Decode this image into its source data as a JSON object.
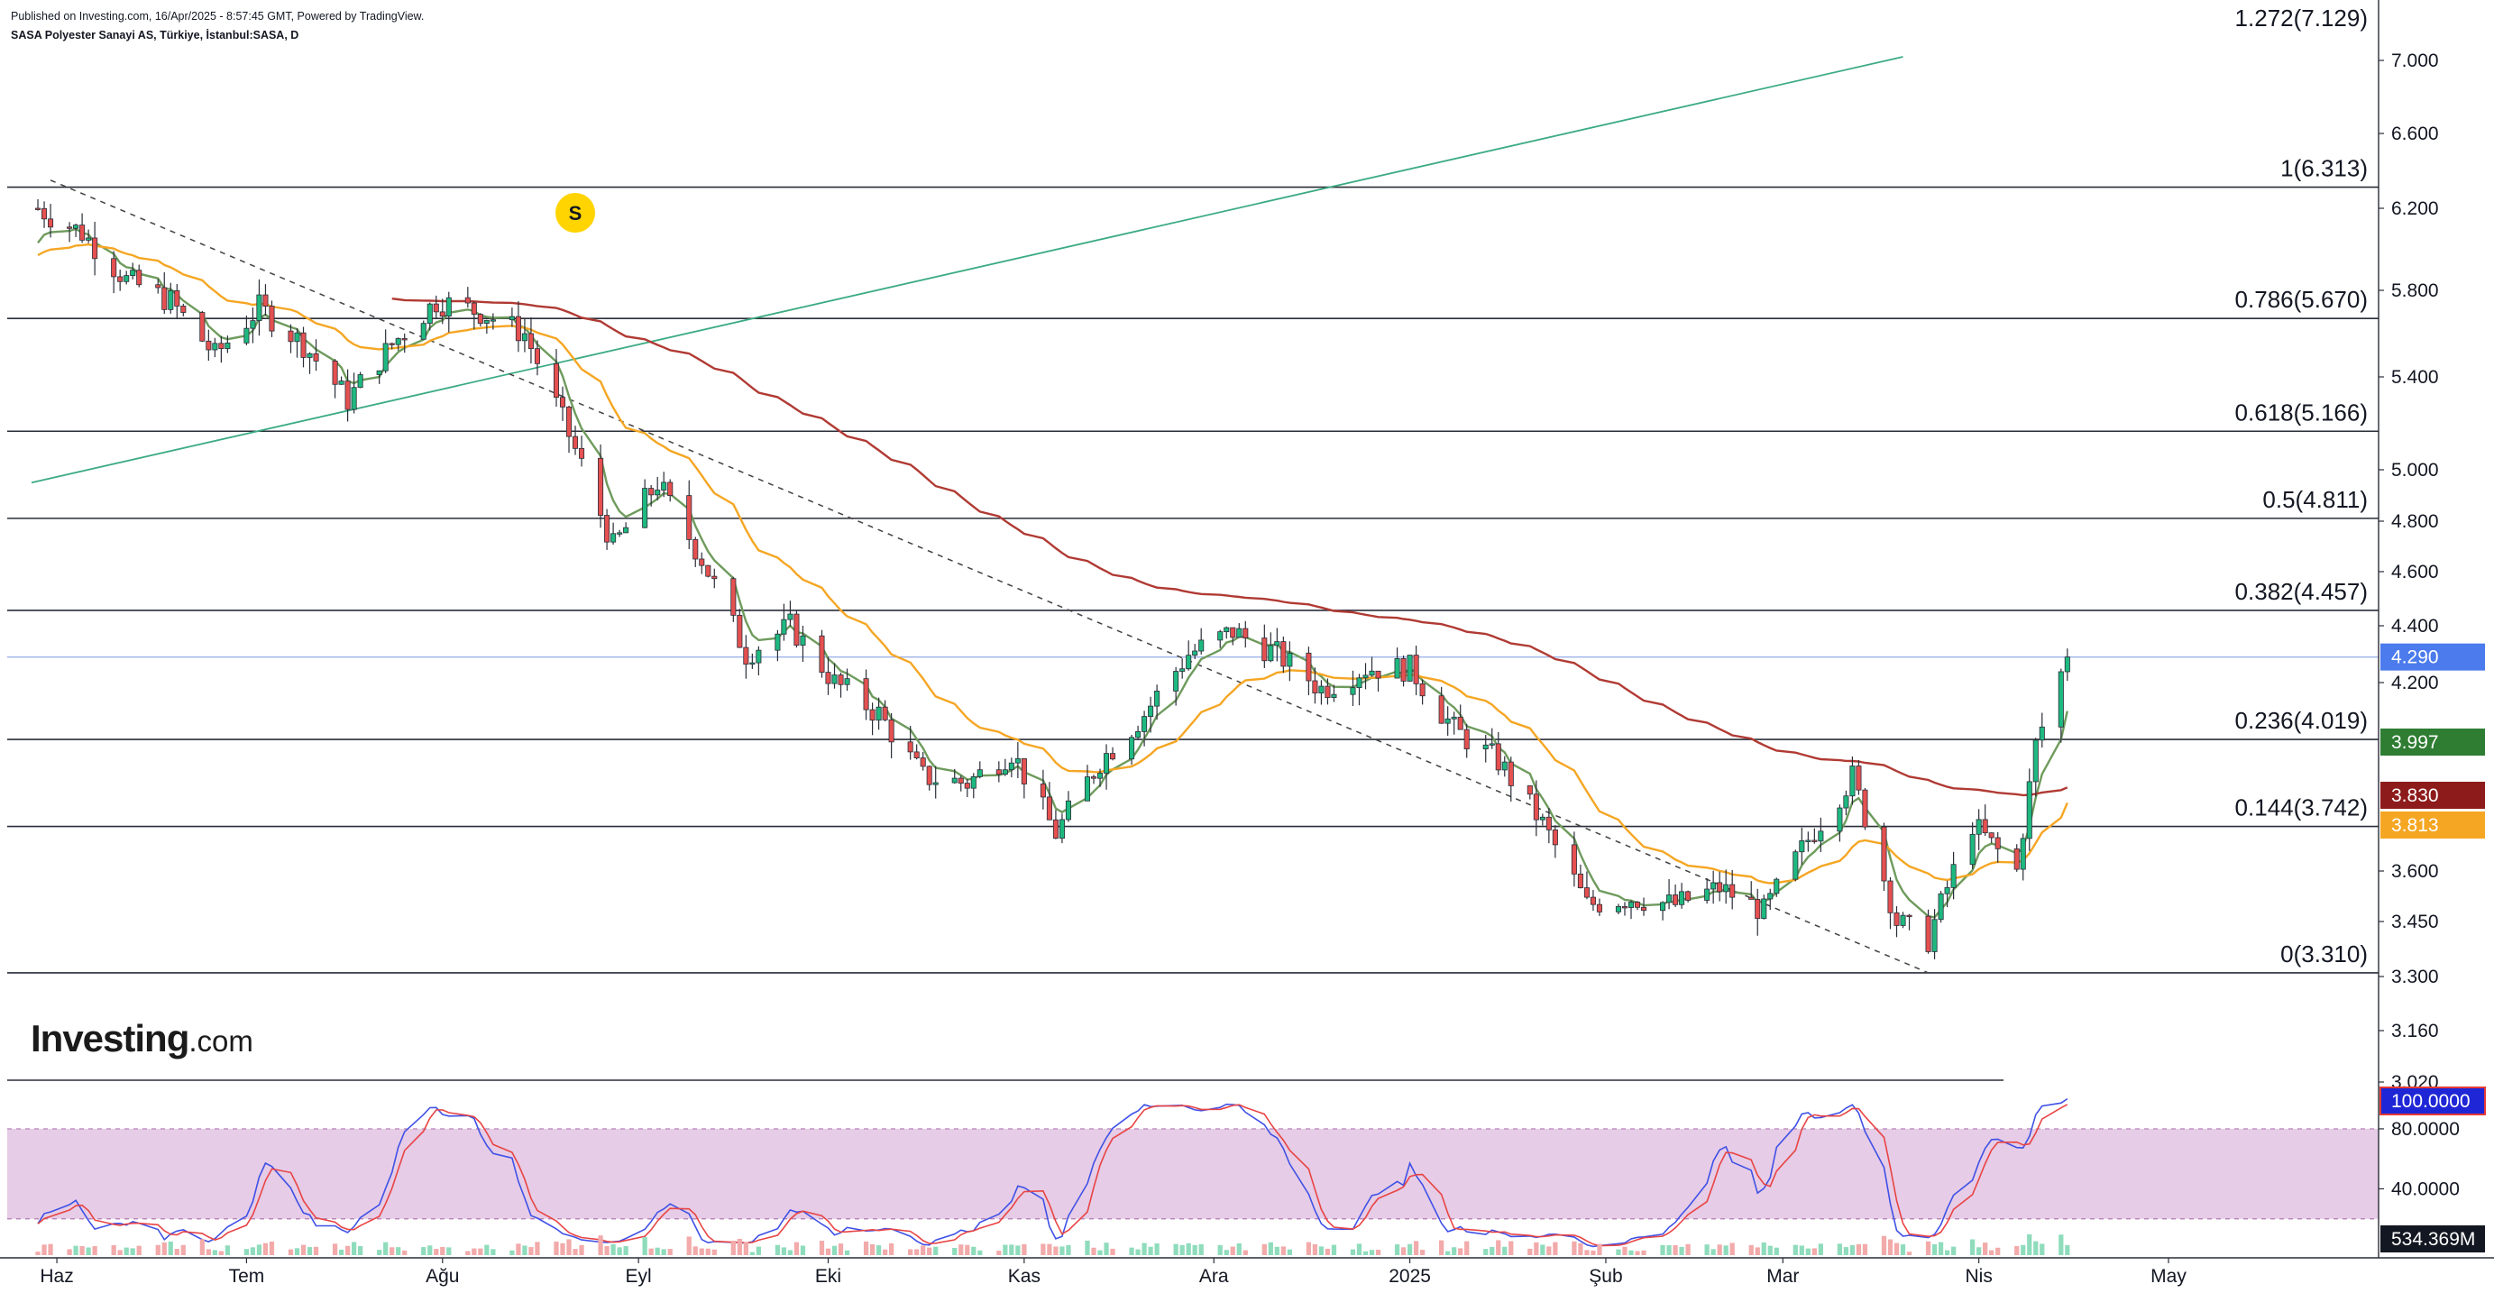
{
  "header": {
    "published": "Published on Investing.com, 16/Apr/2025 - 8:57:45 GMT, Powered by TradingView.",
    "symbol": "SASA Polyester Sanayi AS, Türkiye, İstanbul:SASA, D"
  },
  "logo": {
    "main": "Investing",
    "suffix": ".com"
  },
  "colors": {
    "up": "#1eb980",
    "down": "#e55050",
    "ema_fast": "#6e9b5c",
    "ema_mid": "#f5a623",
    "ema_slow": "#b03a33",
    "trend": "#3bab82",
    "stoch_k": "#3f51e6",
    "stoch_d": "#e84444",
    "stoch_band": "#e6cce6",
    "marker": "#ffd400"
  },
  "chart_data": [
    {
      "type": "candlestick",
      "title": "SASA Polyester Sanayi AS, Türkiye, İstanbul:SASA, D",
      "ylim": [
        3.03,
        7.05
      ],
      "y_ticks": [
        "7.000",
        "6.600",
        "6.200",
        "5.800",
        "5.400",
        "5.000",
        "4.800",
        "4.600",
        "4.400",
        "4.200",
        "3.600",
        "3.450",
        "3.300",
        "3.160",
        "3.020"
      ],
      "x_ticks": [
        "Haz",
        "Tem",
        "Ağu",
        "Eyl",
        "Eki",
        "Kas",
        "Ara",
        "2025",
        "Şub",
        "Mar",
        "Nis",
        "May"
      ],
      "close_path": [
        [
          "2024-05-29",
          6.2
        ],
        [
          "2024-06-05",
          6.08
        ],
        [
          "2024-06-12",
          5.85
        ],
        [
          "2024-06-19",
          5.75
        ],
        [
          "2024-06-26",
          5.5
        ],
        [
          "2024-07-03",
          5.72
        ],
        [
          "2024-07-10",
          5.55
        ],
        [
          "2024-07-17",
          5.3
        ],
        [
          "2024-07-24",
          5.55
        ],
        [
          "2024-07-31",
          5.75
        ],
        [
          "2024-08-07",
          5.7
        ],
        [
          "2024-08-14",
          5.6
        ],
        [
          "2024-08-21",
          5.15
        ],
        [
          "2024-08-28",
          4.7
        ],
        [
          "2024-09-04",
          4.95
        ],
        [
          "2024-09-11",
          4.65
        ],
        [
          "2024-09-18",
          4.3
        ],
        [
          "2024-09-25",
          4.4
        ],
        [
          "2024-10-02",
          4.2
        ],
        [
          "2024-10-09",
          4.1
        ],
        [
          "2024-10-16",
          3.9
        ],
        [
          "2024-10-23",
          3.88
        ],
        [
          "2024-10-30",
          3.98
        ],
        [
          "2024-11-06",
          3.72
        ],
        [
          "2024-11-13",
          3.95
        ],
        [
          "2024-11-20",
          4.1
        ],
        [
          "2024-11-27",
          4.3
        ],
        [
          "2024-12-04",
          4.38
        ],
        [
          "2024-12-11",
          4.3
        ],
        [
          "2024-12-18",
          4.18
        ],
        [
          "2024-12-25",
          4.25
        ],
        [
          "2025-01-01",
          4.25
        ],
        [
          "2025-01-08",
          4.05
        ],
        [
          "2025-01-15",
          3.95
        ],
        [
          "2025-01-22",
          3.75
        ],
        [
          "2025-01-29",
          3.5
        ],
        [
          "2025-02-05",
          3.52
        ],
        [
          "2025-02-12",
          3.5
        ],
        [
          "2025-02-19",
          3.55
        ],
        [
          "2025-02-26",
          3.48
        ],
        [
          "2025-03-05",
          3.7
        ],
        [
          "2025-03-12",
          3.9
        ],
        [
          "2025-03-19",
          3.45
        ],
        [
          "2025-03-24",
          3.4
        ],
        [
          "2025-03-31",
          3.75
        ],
        [
          "2025-04-07",
          3.6
        ],
        [
          "2025-04-10",
          4.0
        ],
        [
          "2025-04-15",
          4.29
        ]
      ],
      "last": {
        "date": "2025-04-15",
        "close": 4.29,
        "label": "4.290"
      },
      "moving_averages": [
        {
          "label": "3.997",
          "value": 3.997,
          "color": "#2e7d32"
        },
        {
          "label": "3.830",
          "value": 3.83,
          "color": "#8e1b1b"
        },
        {
          "label": "3.813",
          "value": 3.813,
          "color": "#f5a623"
        }
      ],
      "fibonacci": [
        {
          "ratio": 1.272,
          "price": 7.129,
          "label": "1.272(7.129)"
        },
        {
          "ratio": 1,
          "price": 6.313,
          "label": "1(6.313)"
        },
        {
          "ratio": 0.786,
          "price": 5.67,
          "label": "0.786(5.670)"
        },
        {
          "ratio": 0.618,
          "price": 5.166,
          "label": "0.618(5.166)"
        },
        {
          "ratio": 0.5,
          "price": 4.811,
          "label": "0.5(4.811)"
        },
        {
          "ratio": 0.382,
          "price": 4.457,
          "label": "0.382(4.457)"
        },
        {
          "ratio": 0.236,
          "price": 4.019,
          "label": "0.236(4.019)"
        },
        {
          "ratio": 0.144,
          "price": 3.742,
          "label": "0.144(3.742)"
        },
        {
          "ratio": 0,
          "price": 3.31,
          "label": "0(3.310)"
        }
      ],
      "trendlines": [
        {
          "style": "solid",
          "from": [
            "2024-05-28",
            4.95
          ],
          "to": [
            "2025-03-20",
            7.02
          ]
        },
        {
          "style": "dashed",
          "from": [
            "2024-05-31",
            6.35
          ],
          "to": [
            "2025-03-24",
            3.31
          ]
        }
      ],
      "event_marker": {
        "label": "S",
        "date": "2024-08-22"
      }
    },
    {
      "type": "line",
      "name": "stochastic",
      "ylim": [
        0,
        104
      ],
      "y_ticks": [
        "80.0000",
        "40.0000"
      ],
      "band": [
        20,
        80
      ],
      "last": {
        "label": "100.0000",
        "value": 100
      }
    },
    {
      "type": "bar",
      "name": "volume",
      "last": {
        "label": "534.369M"
      }
    }
  ]
}
